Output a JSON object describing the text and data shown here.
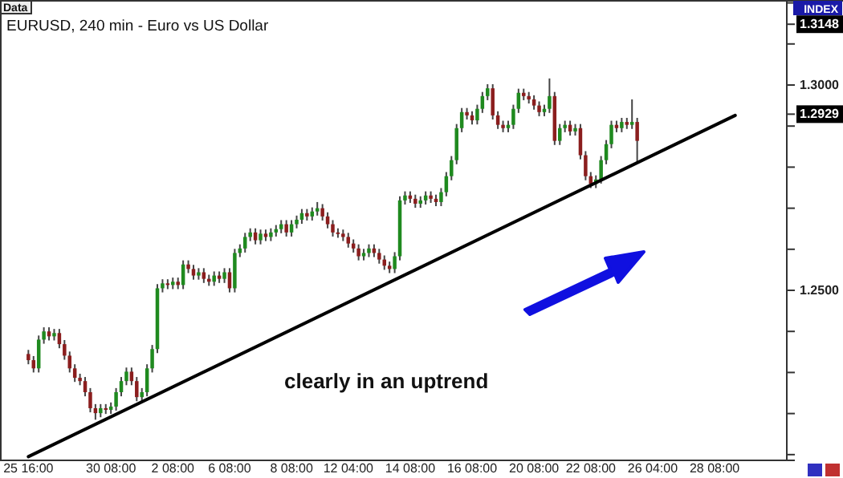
{
  "chart_data": {
    "type": "candlestick",
    "title": "EURUSD, 240 min - Euro vs US Dollar",
    "annotations": [
      "Data",
      "INDEX",
      "clearly in an uptrend"
    ],
    "categories": [
      "25 16:00",
      null,
      null,
      null,
      null,
      null,
      null,
      null,
      null,
      null,
      null,
      null,
      null,
      null,
      null,
      null,
      "30 08:00",
      null,
      null,
      null,
      null,
      null,
      null,
      null,
      null,
      null,
      null,
      null,
      "2 08:00",
      null,
      null,
      null,
      null,
      null,
      null,
      null,
      null,
      null,
      null,
      "6 08:00",
      null,
      null,
      null,
      null,
      null,
      null,
      null,
      null,
      null,
      null,
      null,
      "8 08:00",
      null,
      null,
      null,
      null,
      null,
      null,
      null,
      null,
      null,
      null,
      "12 04:00",
      null,
      null,
      null,
      null,
      null,
      null,
      null,
      null,
      null,
      null,
      null,
      "14 08:00",
      null,
      null,
      null,
      null,
      null,
      null,
      null,
      null,
      null,
      null,
      null,
      "16 08:00",
      null,
      null,
      null,
      null,
      null,
      null,
      null,
      null,
      null,
      null,
      null,
      "20 08:00",
      null,
      null,
      null,
      null,
      null,
      null,
      null,
      null,
      null,
      null,
      "22 08:00",
      null,
      null,
      null,
      null,
      null,
      null,
      null,
      null,
      null,
      null,
      null,
      "26 04:00",
      null,
      null,
      null,
      null,
      null,
      null,
      null,
      null,
      null,
      null,
      null,
      "28 08:00",
      null,
      null,
      null,
      null,
      null,
      null,
      null,
      null,
      null,
      null
    ],
    "ohlc": [
      [
        1.2345,
        1.2355,
        1.232,
        1.233
      ],
      [
        1.233,
        1.234,
        1.23,
        1.231
      ],
      [
        1.231,
        1.239,
        1.23,
        1.238
      ],
      [
        1.238,
        1.241,
        1.237,
        1.24
      ],
      [
        1.24,
        1.241,
        1.2378,
        1.2388
      ],
      [
        1.2388,
        1.2406,
        1.2378,
        1.2396
      ],
      [
        1.2396,
        1.2406,
        1.2359,
        1.2369
      ],
      [
        1.2369,
        1.2379,
        1.2331,
        1.2341
      ],
      [
        1.2341,
        1.2351,
        1.23,
        1.231
      ],
      [
        1.231,
        1.232,
        1.2277,
        1.2287
      ],
      [
        1.2287,
        1.2297,
        1.2269,
        1.2279
      ],
      [
        1.2279,
        1.2289,
        1.2242,
        1.2252
      ],
      [
        1.2252,
        1.2262,
        1.2203,
        1.2213
      ],
      [
        1.2213,
        1.2223,
        1.2185,
        1.2201
      ],
      [
        1.2201,
        1.2223,
        1.2191,
        1.2213
      ],
      [
        1.2213,
        1.2223,
        1.2199,
        1.2209
      ],
      [
        1.2209,
        1.2227,
        1.2199,
        1.2217
      ],
      [
        1.2217,
        1.2262,
        1.2207,
        1.2252
      ],
      [
        1.2252,
        1.2289,
        1.2242,
        1.2279
      ],
      [
        1.2279,
        1.2312,
        1.2269,
        1.2302
      ],
      [
        1.2302,
        1.2312,
        1.2269,
        1.2279
      ],
      [
        1.2279,
        1.2289,
        1.223,
        1.224
      ],
      [
        1.224,
        1.2262,
        1.223,
        1.2252
      ],
      [
        1.2252,
        1.232,
        1.2242,
        1.231
      ],
      [
        1.231,
        1.2367,
        1.23,
        1.2357
      ],
      [
        1.2357,
        1.2515,
        1.2347,
        1.2505
      ],
      [
        1.2505,
        1.2527,
        1.2495,
        1.2517
      ],
      [
        1.2517,
        1.2527,
        1.2503,
        1.2513
      ],
      [
        1.2513,
        1.2531,
        1.2503,
        1.2521
      ],
      [
        1.2521,
        1.2531,
        1.2503,
        1.2513
      ],
      [
        1.2513,
        1.2573,
        1.2503,
        1.2563
      ],
      [
        1.2563,
        1.2573,
        1.2542,
        1.2552
      ],
      [
        1.2552,
        1.2562,
        1.2526,
        1.2536
      ],
      [
        1.2536,
        1.2554,
        1.2526,
        1.2544
      ],
      [
        1.2544,
        1.2554,
        1.2518,
        1.2528
      ],
      [
        1.2528,
        1.2538,
        1.2511,
        1.2521
      ],
      [
        1.2521,
        1.2546,
        1.2511,
        1.2536
      ],
      [
        1.2536,
        1.2546,
        1.2518,
        1.2528
      ],
      [
        1.2528,
        1.2554,
        1.2518,
        1.2544
      ],
      [
        1.2544,
        1.2554,
        1.2495,
        1.2505
      ],
      [
        1.2505,
        1.2601,
        1.2495,
        1.2591
      ],
      [
        1.2591,
        1.2612,
        1.2581,
        1.2602
      ],
      [
        1.2602,
        1.264,
        1.2592,
        1.263
      ],
      [
        1.263,
        1.2651,
        1.262,
        1.2641
      ],
      [
        1.2641,
        1.2651,
        1.2612,
        1.2622
      ],
      [
        1.2622,
        1.2648,
        1.2612,
        1.2638
      ],
      [
        1.2638,
        1.2648,
        1.262,
        1.263
      ],
      [
        1.263,
        1.2651,
        1.262,
        1.2641
      ],
      [
        1.2641,
        1.2659,
        1.2631,
        1.2649
      ],
      [
        1.2649,
        1.2671,
        1.2639,
        1.2661
      ],
      [
        1.2661,
        1.2671,
        1.2631,
        1.2641
      ],
      [
        1.2641,
        1.2671,
        1.2631,
        1.2661
      ],
      [
        1.2661,
        1.2682,
        1.2651,
        1.2672
      ],
      [
        1.2672,
        1.2698,
        1.2662,
        1.2688
      ],
      [
        1.2688,
        1.2698,
        1.267,
        1.268
      ],
      [
        1.268,
        1.2702,
        1.267,
        1.2692
      ],
      [
        1.2692,
        1.2715,
        1.2682,
        1.27
      ],
      [
        1.27,
        1.271,
        1.267,
        1.268
      ],
      [
        1.268,
        1.269,
        1.2651,
        1.2661
      ],
      [
        1.2661,
        1.2671,
        1.2631,
        1.2641
      ],
      [
        1.2641,
        1.2651,
        1.2628,
        1.2638
      ],
      [
        1.2638,
        1.2648,
        1.262,
        1.263
      ],
      [
        1.263,
        1.264,
        1.2604,
        1.2614
      ],
      [
        1.2614,
        1.2624,
        1.2592,
        1.2602
      ],
      [
        1.2602,
        1.2612,
        1.2573,
        1.2583
      ],
      [
        1.2583,
        1.2601,
        1.2573,
        1.2591
      ],
      [
        1.2591,
        1.2612,
        1.2581,
        1.2602
      ],
      [
        1.2602,
        1.2612,
        1.2581,
        1.2591
      ],
      [
        1.2591,
        1.2601,
        1.2565,
        1.2575
      ],
      [
        1.2575,
        1.2585,
        1.255,
        1.256
      ],
      [
        1.256,
        1.257,
        1.2542,
        1.2552
      ],
      [
        1.2552,
        1.2593,
        1.2542,
        1.2583
      ],
      [
        1.2583,
        1.2729,
        1.2573,
        1.2719
      ],
      [
        1.2719,
        1.2741,
        1.2709,
        1.2731
      ],
      [
        1.2731,
        1.2741,
        1.2713,
        1.2723
      ],
      [
        1.2723,
        1.2733,
        1.2701,
        1.2711
      ],
      [
        1.2711,
        1.2729,
        1.2701,
        1.2719
      ],
      [
        1.2719,
        1.2741,
        1.2709,
        1.2731
      ],
      [
        1.2731,
        1.2741,
        1.2713,
        1.2723
      ],
      [
        1.2723,
        1.2733,
        1.2705,
        1.2715
      ],
      [
        1.2715,
        1.2749,
        1.2705,
        1.2739
      ],
      [
        1.2739,
        1.2788,
        1.2729,
        1.2778
      ],
      [
        1.2778,
        1.2827,
        1.2768,
        1.2817
      ],
      [
        1.2817,
        1.2905,
        1.2807,
        1.2895
      ],
      [
        1.2895,
        1.2944,
        1.2885,
        1.2934
      ],
      [
        1.2934,
        1.2944,
        1.2916,
        1.2926
      ],
      [
        1.2926,
        1.2936,
        1.2904,
        1.2914
      ],
      [
        1.2914,
        1.2952,
        1.2904,
        1.2942
      ],
      [
        1.2942,
        1.2983,
        1.2932,
        1.2973
      ],
      [
        1.2973,
        1.3002,
        1.2963,
        1.2992
      ],
      [
        1.2992,
        1.3002,
        1.2916,
        1.2926
      ],
      [
        1.2926,
        1.2936,
        1.2893,
        1.2903
      ],
      [
        1.2903,
        1.2913,
        1.2885,
        1.2895
      ],
      [
        1.2895,
        1.2913,
        1.2885,
        1.2903
      ],
      [
        1.2903,
        1.2952,
        1.2893,
        1.2942
      ],
      [
        1.2942,
        1.2991,
        1.2932,
        1.2981
      ],
      [
        1.2981,
        1.2991,
        1.2963,
        1.2973
      ],
      [
        1.2973,
        1.2983,
        1.2955,
        1.2965
      ],
      [
        1.2965,
        1.2975,
        1.294,
        1.295
      ],
      [
        1.295,
        1.296,
        1.2924,
        1.2934
      ],
      [
        1.2934,
        1.2952,
        1.2924,
        1.2942
      ],
      [
        1.2942,
        1.3016,
        1.2932,
        1.2973
      ],
      [
        1.2973,
        1.2983,
        1.2854,
        1.2864
      ],
      [
        1.2864,
        1.2905,
        1.2854,
        1.2895
      ],
      [
        1.2895,
        1.2913,
        1.2885,
        1.2903
      ],
      [
        1.2903,
        1.2913,
        1.2877,
        1.2887
      ],
      [
        1.2887,
        1.2905,
        1.2877,
        1.2895
      ],
      [
        1.2895,
        1.2905,
        1.2819,
        1.2829
      ],
      [
        1.2829,
        1.2839,
        1.2768,
        1.2778
      ],
      [
        1.2778,
        1.2788,
        1.2749,
        1.2759
      ],
      [
        1.2759,
        1.278,
        1.2749,
        1.277
      ],
      [
        1.277,
        1.2827,
        1.276,
        1.2817
      ],
      [
        1.2817,
        1.2866,
        1.2807,
        1.2856
      ],
      [
        1.2856,
        1.2913,
        1.2846,
        1.2903
      ],
      [
        1.2903,
        1.2913,
        1.2885,
        1.2895
      ],
      [
        1.2895,
        1.292,
        1.2885,
        1.291
      ],
      [
        1.291,
        1.292,
        1.2893,
        1.2903
      ],
      [
        1.2903,
        1.2965,
        1.2893,
        1.291
      ],
      [
        1.291,
        1.292,
        1.2809,
        1.2864
      ],
      null,
      null,
      null,
      null,
      null,
      null,
      null,
      null,
      null,
      null,
      null,
      null,
      null,
      null,
      null,
      null,
      null,
      null,
      null,
      null,
      null,
      null,
      null,
      null,
      null
    ],
    "series": [
      {
        "type": "line",
        "color": "#000000",
        "values": [
          1.2095,
          null,
          null,
          null,
          null,
          null,
          null,
          null,
          null,
          null,
          null,
          null,
          null,
          null,
          null,
          null,
          null,
          null,
          null,
          null,
          null,
          null,
          null,
          null,
          null,
          null,
          null,
          null,
          null,
          null,
          null,
          null,
          null,
          null,
          null,
          null,
          null,
          null,
          null,
          null,
          null,
          null,
          null,
          null,
          null,
          null,
          null,
          null,
          null,
          null,
          null,
          null,
          null,
          null,
          null,
          null,
          null,
          null,
          null,
          null,
          null,
          null,
          null,
          null,
          null,
          null,
          null,
          null,
          null,
          null,
          null,
          null,
          null,
          null,
          null,
          null,
          null,
          null,
          null,
          null,
          null,
          null,
          null,
          null,
          null,
          null,
          null,
          null,
          null,
          null,
          null,
          null,
          null,
          null,
          null,
          null,
          null,
          null,
          null,
          null,
          null,
          null,
          null,
          null,
          null,
          null,
          null,
          null,
          null,
          null,
          null,
          null,
          null,
          null,
          null,
          null,
          null,
          null,
          null,
          null,
          null,
          null,
          null,
          null,
          null,
          null,
          null,
          null,
          null,
          null,
          null,
          null,
          null,
          null,
          null,
          null,
          null,
          1.2926,
          null,
          null,
          null,
          null,
          null,
          null
        ]
      }
    ],
    "ylim": [
      1.2086,
      1.3207
    ],
    "yticks": [
      {
        "value": 1.21,
        "label": null
      },
      {
        "value": 1.22,
        "label": null
      },
      {
        "value": 1.23,
        "label": null
      },
      {
        "value": 1.24,
        "label": null
      },
      {
        "value": 1.25,
        "label": "1.2500"
      },
      {
        "value": 1.26,
        "label": null
      },
      {
        "value": 1.27,
        "label": null
      },
      {
        "value": 1.28,
        "label": null
      },
      {
        "value": 1.29,
        "label": null
      },
      {
        "value": 1.2929,
        "label": "1.2929"
      },
      {
        "value": 1.3,
        "label": "1.3000"
      },
      {
        "value": 1.31,
        "label": null
      },
      {
        "value": 1.3148,
        "label": "1.3148"
      },
      {
        "value": 1.32,
        "label": null
      }
    ],
    "grid": false
  }
}
